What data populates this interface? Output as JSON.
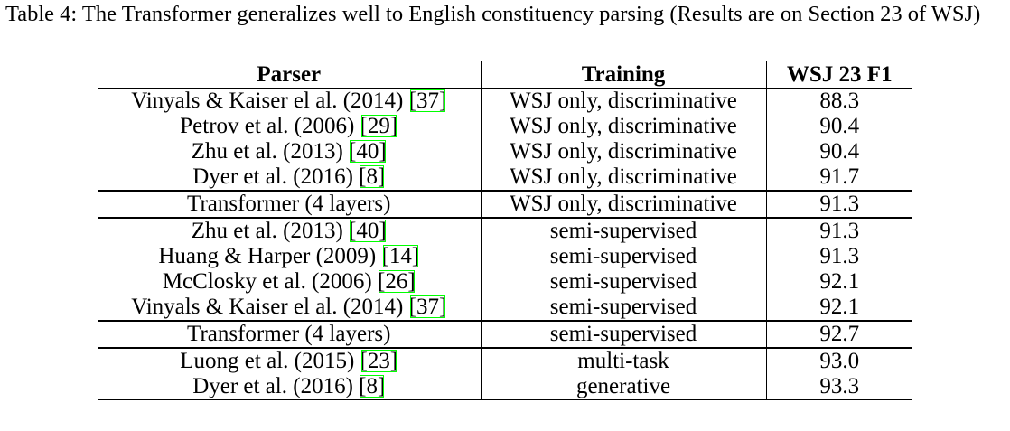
{
  "caption": "Table 4: The Transformer generalizes well to English constituency parsing (Results are on Section 23 of WSJ)",
  "table": {
    "header": [
      "Parser",
      "Training",
      "WSJ 23 F1"
    ],
    "groups": [
      [
        {
          "parser": "Vinyals & Kaiser el al. (2014)",
          "cite": "[37]",
          "training": "WSJ only, discriminative",
          "f1": "88.3"
        },
        {
          "parser": "Petrov et al. (2006)",
          "cite": "[29]",
          "training": "WSJ only, discriminative",
          "f1": "90.4"
        },
        {
          "parser": "Zhu et al. (2013)",
          "cite": "[40]",
          "training": "WSJ only, discriminative",
          "f1": "90.4"
        },
        {
          "parser": "Dyer et al. (2016)",
          "cite": "[8]",
          "training": "WSJ only, discriminative",
          "f1": "91.7"
        }
      ],
      [
        {
          "parser": "Transformer (4 layers)",
          "training": "WSJ only, discriminative",
          "f1": "91.3"
        }
      ],
      [
        {
          "parser": "Zhu et al. (2013)",
          "cite": "[40]",
          "training": "semi-supervised",
          "f1": "91.3"
        },
        {
          "parser": "Huang & Harper (2009)",
          "cite": "[14]",
          "training": "semi-supervised",
          "f1": "91.3"
        },
        {
          "parser": "McClosky et al. (2006)",
          "cite": "[26]",
          "training": "semi-supervised",
          "f1": "92.1"
        },
        {
          "parser": "Vinyals & Kaiser el al. (2014)",
          "cite": "[37]",
          "training": "semi-supervised",
          "f1": "92.1"
        }
      ],
      [
        {
          "parser": "Transformer (4 layers)",
          "training": "semi-supervised",
          "f1": "92.7"
        }
      ],
      [
        {
          "parser": "Luong et al. (2015)",
          "cite": "[23]",
          "training": "multi-task",
          "f1": "93.0"
        },
        {
          "parser": "Dyer et al. (2016)",
          "cite": "[8]",
          "training": "generative",
          "f1": "93.3"
        }
      ]
    ]
  }
}
